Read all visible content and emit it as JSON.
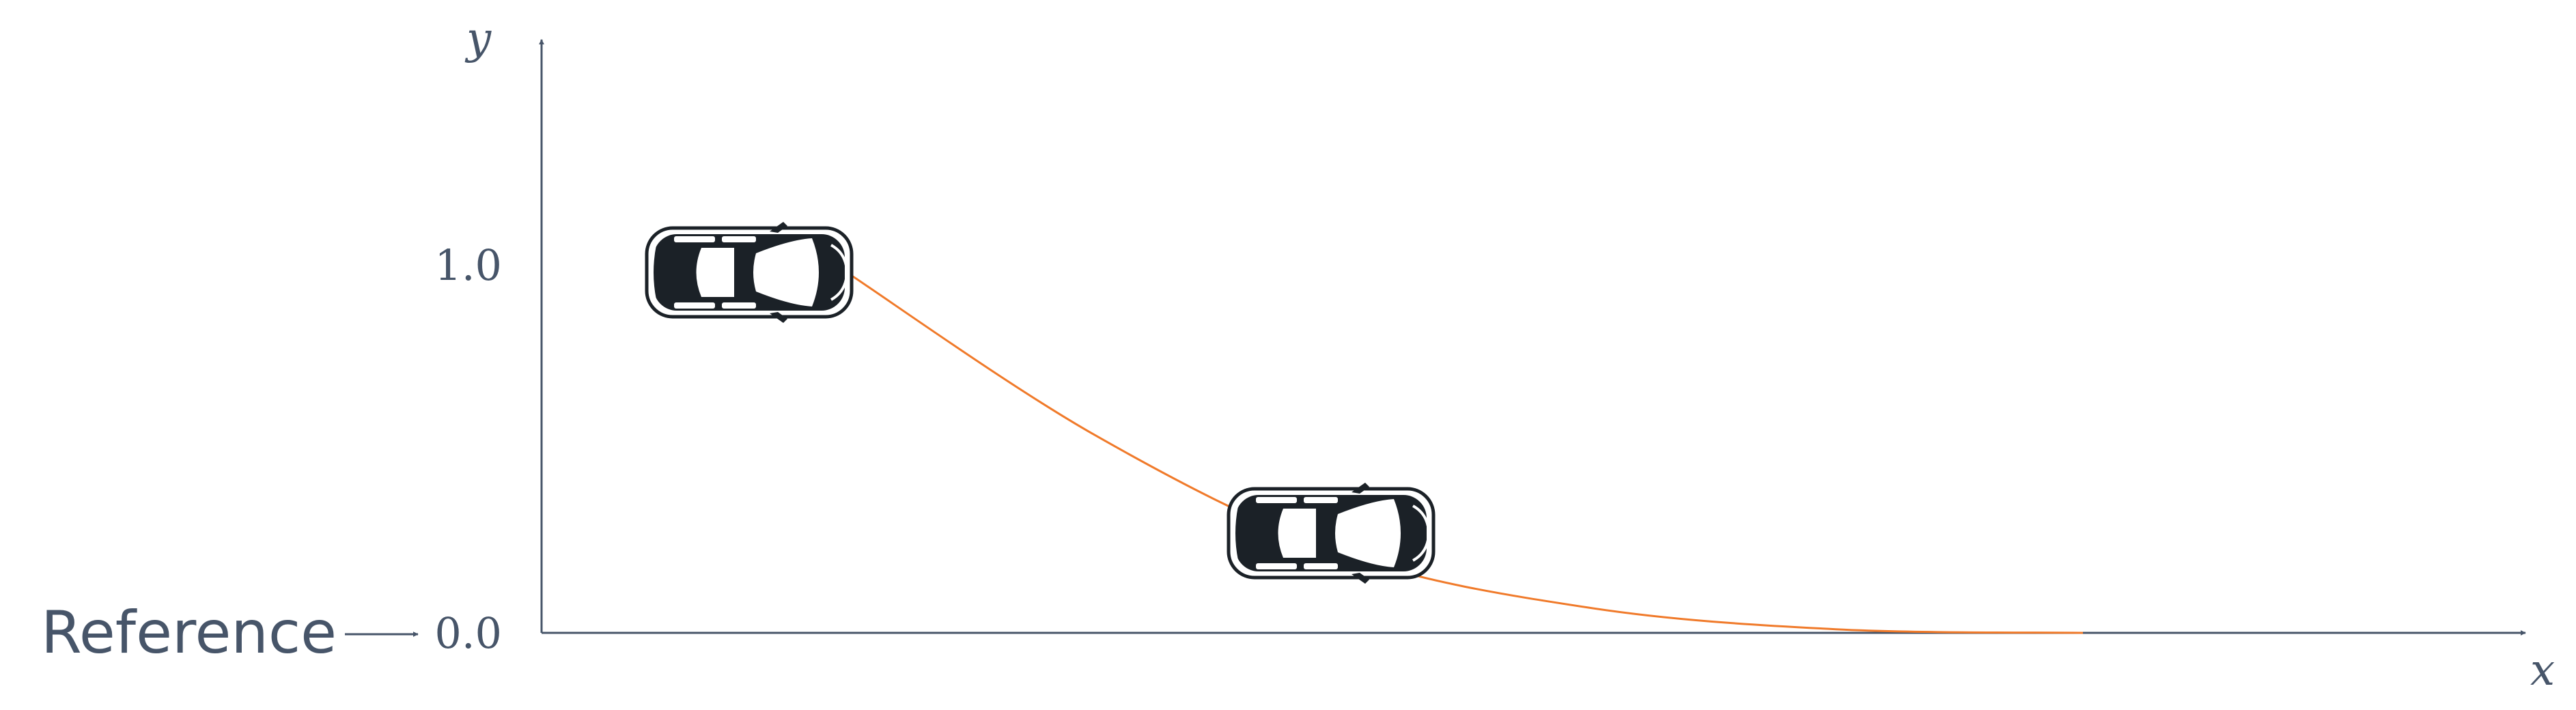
{
  "axes": {
    "x_label": "x",
    "y_label": "y",
    "y_ticks": [
      "1.0",
      "0.0"
    ]
  },
  "reference": {
    "label": "Reference"
  },
  "chart_data": {
    "type": "line",
    "series": [
      {
        "x": [
          0.0,
          0.2,
          0.4,
          0.6,
          0.8,
          1.0
        ],
        "y": [
          1.0,
          0.55,
          0.22,
          0.07,
          0.01,
          0.0
        ]
      }
    ],
    "ylim": [
      0,
      1.0
    ],
    "grid": false
  },
  "cars": [
    {
      "icon": "car-top-view-icon"
    },
    {
      "icon": "car-top-view-icon"
    }
  ],
  "colors": {
    "axis": "#475569",
    "trajectory": "#f07a2a",
    "car_body": "#1b2127"
  }
}
